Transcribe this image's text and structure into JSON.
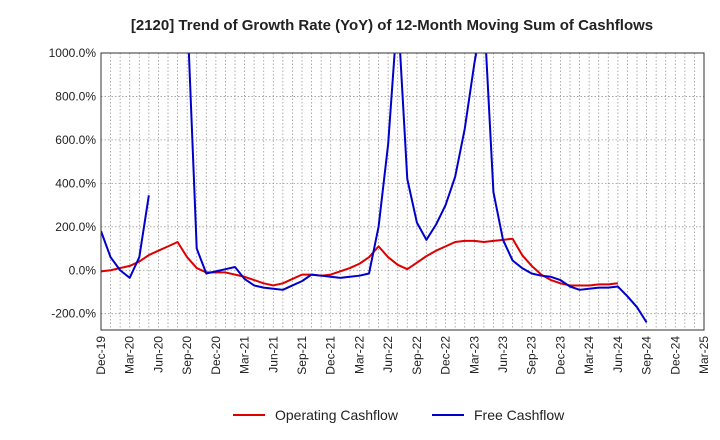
{
  "chart_data": {
    "type": "line",
    "title": "[2120]  Trend of Growth Rate (YoY) of 12-Month Moving Sum of Cashflows",
    "xlabel": "",
    "ylabel": "",
    "ylim": [
      -275,
      1000
    ],
    "yticks": [
      -200,
      0,
      200,
      400,
      600,
      800,
      1000
    ],
    "ytick_labels": [
      "-200.0%",
      "0.0%",
      "200.0%",
      "400.0%",
      "600.0%",
      "800.0%",
      "1000.0%"
    ],
    "x_start": "Dec-19",
    "x_end": "Mar-25",
    "x_tick_labels": [
      "Dec-19",
      "Mar-20",
      "Jun-20",
      "Sep-20",
      "Dec-20",
      "Mar-21",
      "Jun-21",
      "Sep-21",
      "Dec-21",
      "Mar-22",
      "Jun-22",
      "Sep-22",
      "Dec-22",
      "Mar-23",
      "Jun-23",
      "Sep-23",
      "Dec-23",
      "Mar-24",
      "Jun-24",
      "Sep-24",
      "Dec-24",
      "Mar-25"
    ],
    "grid": true,
    "legend_position": "bottom",
    "series": [
      {
        "name": "Operating Cashflow",
        "color": "#dd0000",
        "values": [
          -5,
          0,
          10,
          20,
          40,
          70,
          90,
          110,
          130,
          60,
          10,
          -10,
          -10,
          -10,
          -20,
          -30,
          -45,
          -60,
          -70,
          -60,
          -40,
          -20,
          -20,
          -25,
          -20,
          -5,
          10,
          30,
          60,
          110,
          60,
          25,
          5,
          35,
          65,
          90,
          110,
          130,
          135,
          135,
          130,
          135,
          140,
          145,
          70,
          20,
          -20,
          -45,
          -60,
          -70,
          -70,
          -70,
          -65,
          -65,
          -60,
          null,
          null,
          null,
          null,
          null,
          null,
          null,
          null,
          null,
          null,
          null
        ]
      },
      {
        "name": "Free Cashflow",
        "color": "#0000cc",
        "values": [
          180,
          60,
          0,
          -35,
          60,
          345,
          null,
          null,
          null,
          1200,
          100,
          -15,
          -5,
          5,
          15,
          -40,
          -70,
          -80,
          -85,
          -90,
          -70,
          -50,
          -20,
          -25,
          -30,
          -35,
          -30,
          -25,
          -15,
          200,
          580,
          1200,
          420,
          220,
          140,
          210,
          300,
          430,
          650,
          950,
          1200,
          360,
          140,
          45,
          10,
          -15,
          -25,
          -30,
          -45,
          -75,
          -90,
          -85,
          -80,
          -80,
          -75,
          -120,
          -170,
          -240,
          null,
          null,
          null,
          null,
          null,
          null,
          null,
          null
        ]
      }
    ]
  }
}
